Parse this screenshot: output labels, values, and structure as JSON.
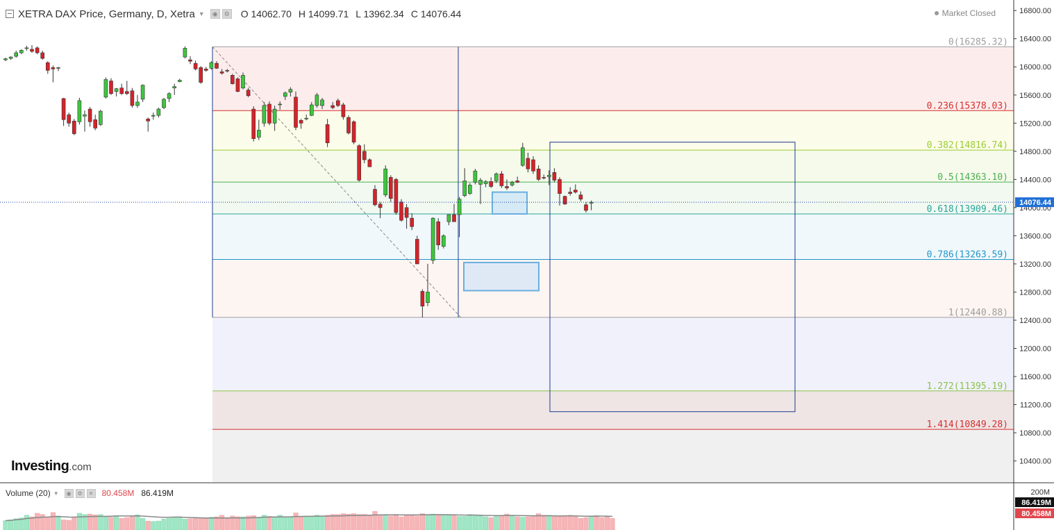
{
  "header": {
    "title": "XETRA DAX Price, Germany, D, Xetra",
    "open": "O 14062.70",
    "high": "H 14099.71",
    "low": "L 13962.34",
    "close": "C 14076.44",
    "market_status": "Market Closed"
  },
  "logo": {
    "main": "Investing",
    "suffix": ".com"
  },
  "volume_pane": {
    "label": "Volume (20)",
    "value_1": "80.458M",
    "value_2": "86.419M",
    "axis_labels": [
      "200M",
      "86.419M",
      "80.458M"
    ]
  },
  "colors": {
    "up": "#3ec63e",
    "down": "#d5232a",
    "vol_up": "#9fe6c5",
    "vol_down": "#f6b5b7"
  },
  "chart_data": {
    "type": "candlestick",
    "y_range": [
      10100,
      16950
    ],
    "y_ticks": [
      10400,
      10800,
      11200,
      11600,
      12000,
      12400,
      12800,
      13200,
      13600,
      14000,
      14400,
      14800,
      15200,
      15600,
      16000,
      16400,
      16800
    ],
    "y_tick_labels": [
      "10400.00",
      "10800.00",
      "11200.00",
      "11600.00",
      "12000.00",
      "12400.00",
      "12800.00",
      "13200.00",
      "13600.00",
      "14000.00",
      "14400.00",
      "14800.00",
      "15200.00",
      "15600.00",
      "16000.00",
      "16400.00",
      "16800.00"
    ],
    "last_price": 14076.44,
    "last_price_label": "14076.44",
    "fibonacci": {
      "levels": [
        {
          "label": "0(16285.32)",
          "price": 16285.32,
          "color": "#9e9e9e"
        },
        {
          "label": "0.236(15378.03)",
          "price": 15378.03,
          "color": "#d32f2f"
        },
        {
          "label": "0.382(14816.74)",
          "price": 14816.74,
          "color": "#9acd32"
        },
        {
          "label": "0.5(14363.10)",
          "price": 14363.1,
          "color": "#4caf50"
        },
        {
          "label": "0.618(13909.46)",
          "price": 13909.46,
          "color": "#26a69a"
        },
        {
          "label": "0.786(13263.59)",
          "price": 13263.59,
          "color": "#2196c9"
        },
        {
          "label": "1(12440.88)",
          "price": 12440.88,
          "color": "#9e9e9e"
        },
        {
          "label": "1.272(11395.19)",
          "price": 11395.19,
          "color": "#8bc34a"
        },
        {
          "label": "1.414(10849.28)",
          "price": 10849.28,
          "color": "#d32f2f"
        }
      ]
    },
    "candles": [
      {
        "o": 16100,
        "h": 16130,
        "l": 16080,
        "c": 16115
      },
      {
        "o": 16120,
        "h": 16150,
        "l": 16100,
        "c": 16140
      },
      {
        "o": 16150,
        "h": 16230,
        "l": 16130,
        "c": 16200
      },
      {
        "o": 16200,
        "h": 16250,
        "l": 16180,
        "c": 16235
      },
      {
        "o": 16260,
        "h": 16300,
        "l": 16230,
        "c": 16270
      },
      {
        "o": 16250,
        "h": 16310,
        "l": 16200,
        "c": 16220
      },
      {
        "o": 16270,
        "h": 16290,
        "l": 16180,
        "c": 16200
      },
      {
        "o": 16200,
        "h": 16230,
        "l": 16100,
        "c": 16120
      },
      {
        "o": 16060,
        "h": 16080,
        "l": 15900,
        "c": 15950
      },
      {
        "o": 15990,
        "h": 16020,
        "l": 15780,
        "c": 15970
      },
      {
        "o": 15980,
        "h": 16000,
        "l": 15940,
        "c": 15990
      },
      {
        "o": 15550,
        "h": 15560,
        "l": 15160,
        "c": 15250
      },
      {
        "o": 15320,
        "h": 15350,
        "l": 15150,
        "c": 15200
      },
      {
        "o": 15230,
        "h": 15260,
        "l": 15030,
        "c": 15050
      },
      {
        "o": 15220,
        "h": 15560,
        "l": 15180,
        "c": 15520
      },
      {
        "o": 15300,
        "h": 15380,
        "l": 15080,
        "c": 15320
      },
      {
        "o": 15400,
        "h": 15430,
        "l": 15150,
        "c": 15220
      },
      {
        "o": 15250,
        "h": 15320,
        "l": 15100,
        "c": 15130
      },
      {
        "o": 15180,
        "h": 15390,
        "l": 15160,
        "c": 15370
      },
      {
        "o": 15570,
        "h": 15850,
        "l": 15550,
        "c": 15820
      },
      {
        "o": 15800,
        "h": 15840,
        "l": 15600,
        "c": 15620
      },
      {
        "o": 15650,
        "h": 15700,
        "l": 15580,
        "c": 15690
      },
      {
        "o": 15700,
        "h": 15760,
        "l": 15600,
        "c": 15620
      },
      {
        "o": 15650,
        "h": 15800,
        "l": 15600,
        "c": 15620
      },
      {
        "o": 15660,
        "h": 15700,
        "l": 15420,
        "c": 15450
      },
      {
        "o": 15450,
        "h": 15600,
        "l": 15420,
        "c": 15500
      },
      {
        "o": 15540,
        "h": 15750,
        "l": 15500,
        "c": 15740
      },
      {
        "o": 15260,
        "h": 15280,
        "l": 15080,
        "c": 15230
      },
      {
        "o": 15300,
        "h": 15350,
        "l": 15250,
        "c": 15310
      },
      {
        "o": 15310,
        "h": 15420,
        "l": 15280,
        "c": 15400
      },
      {
        "o": 15420,
        "h": 15560,
        "l": 15400,
        "c": 15540
      },
      {
        "o": 15550,
        "h": 15640,
        "l": 15500,
        "c": 15620
      },
      {
        "o": 15700,
        "h": 15760,
        "l": 15600,
        "c": 15720
      },
      {
        "o": 15790,
        "h": 15830,
        "l": 15780,
        "c": 15810
      },
      {
        "o": 16140,
        "h": 16290,
        "l": 16120,
        "c": 16265
      },
      {
        "o": 16100,
        "h": 16150,
        "l": 16040,
        "c": 16080
      },
      {
        "o": 16050,
        "h": 16090,
        "l": 15950,
        "c": 15970
      },
      {
        "o": 15990,
        "h": 16010,
        "l": 15760,
        "c": 15780
      },
      {
        "o": 15970,
        "h": 16000,
        "l": 15930,
        "c": 15950
      },
      {
        "o": 15980,
        "h": 16080,
        "l": 15960,
        "c": 16060
      },
      {
        "o": 16050,
        "h": 16080,
        "l": 15970,
        "c": 15980
      },
      {
        "o": 15930,
        "h": 15970,
        "l": 15890,
        "c": 15910
      },
      {
        "o": 15950,
        "h": 15970,
        "l": 15920,
        "c": 15940
      },
      {
        "o": 15880,
        "h": 15900,
        "l": 15750,
        "c": 15760
      },
      {
        "o": 15830,
        "h": 15850,
        "l": 15640,
        "c": 15650
      },
      {
        "o": 15700,
        "h": 15920,
        "l": 15680,
        "c": 15880
      },
      {
        "o": 15670,
        "h": 15700,
        "l": 15570,
        "c": 15590
      },
      {
        "o": 15400,
        "h": 15440,
        "l": 14940,
        "c": 14980
      },
      {
        "o": 15000,
        "h": 15250,
        "l": 14960,
        "c": 15100
      },
      {
        "o": 15200,
        "h": 15500,
        "l": 15150,
        "c": 15450
      },
      {
        "o": 15470,
        "h": 15510,
        "l": 15170,
        "c": 15200
      },
      {
        "o": 15200,
        "h": 15450,
        "l": 15090,
        "c": 15400
      },
      {
        "o": 15460,
        "h": 15510,
        "l": 15390,
        "c": 15470
      },
      {
        "o": 15580,
        "h": 15650,
        "l": 15530,
        "c": 15630
      },
      {
        "o": 15640,
        "h": 15710,
        "l": 15580,
        "c": 15680
      },
      {
        "o": 15570,
        "h": 15650,
        "l": 15100,
        "c": 15140
      },
      {
        "o": 15240,
        "h": 15260,
        "l": 15120,
        "c": 15200
      },
      {
        "o": 15260,
        "h": 15320,
        "l": 15240,
        "c": 15270
      },
      {
        "o": 15310,
        "h": 15500,
        "l": 15300,
        "c": 15460
      },
      {
        "o": 15450,
        "h": 15630,
        "l": 15420,
        "c": 15600
      },
      {
        "o": 15450,
        "h": 15560,
        "l": 15400,
        "c": 15530
      },
      {
        "o": 15180,
        "h": 15260,
        "l": 14860,
        "c": 14920
      },
      {
        "o": 15450,
        "h": 15500,
        "l": 15400,
        "c": 15420
      },
      {
        "o": 15520,
        "h": 15550,
        "l": 15430,
        "c": 15450
      },
      {
        "o": 15460,
        "h": 15490,
        "l": 15250,
        "c": 15290
      },
      {
        "o": 15280,
        "h": 15310,
        "l": 15040,
        "c": 15060
      },
      {
        "o": 15220,
        "h": 15240,
        "l": 14900,
        "c": 14930
      },
      {
        "o": 14880,
        "h": 14900,
        "l": 14370,
        "c": 14390
      },
      {
        "o": 14800,
        "h": 14900,
        "l": 14630,
        "c": 14680
      },
      {
        "o": 14680,
        "h": 14700,
        "l": 14580,
        "c": 14580
      },
      {
        "o": 14260,
        "h": 14320,
        "l": 14020,
        "c": 14040
      },
      {
        "o": 14050,
        "h": 14080,
        "l": 13850,
        "c": 14000
      },
      {
        "o": 14180,
        "h": 14600,
        "l": 14150,
        "c": 14550
      },
      {
        "o": 14430,
        "h": 14460,
        "l": 14080,
        "c": 14130
      },
      {
        "o": 14400,
        "h": 14420,
        "l": 13900,
        "c": 13930
      },
      {
        "o": 14080,
        "h": 14120,
        "l": 13800,
        "c": 13820
      },
      {
        "o": 14000,
        "h": 14050,
        "l": 13700,
        "c": 13860
      },
      {
        "o": 13850,
        "h": 13920,
        "l": 13680,
        "c": 13730
      },
      {
        "o": 13550,
        "h": 13600,
        "l": 13200,
        "c": 13200
      },
      {
        "o": 12810,
        "h": 12840,
        "l": 12440,
        "c": 12600
      },
      {
        "o": 12650,
        "h": 13200,
        "l": 12600,
        "c": 12800
      },
      {
        "o": 13250,
        "h": 13860,
        "l": 13200,
        "c": 13850
      },
      {
        "o": 13800,
        "h": 13850,
        "l": 13400,
        "c": 13470
      },
      {
        "o": 13450,
        "h": 13620,
        "l": 13420,
        "c": 13600
      },
      {
        "o": 13800,
        "h": 13900,
        "l": 13750,
        "c": 13900
      },
      {
        "o": 13900,
        "h": 14050,
        "l": 13830,
        "c": 13800
      },
      {
        "o": 13900,
        "h": 14150,
        "l": 13580,
        "c": 14120
      },
      {
        "o": 14170,
        "h": 14560,
        "l": 14150,
        "c": 14380
      },
      {
        "o": 14200,
        "h": 14350,
        "l": 14180,
        "c": 14320
      },
      {
        "o": 14360,
        "h": 14550,
        "l": 14330,
        "c": 14520
      },
      {
        "o": 14330,
        "h": 14420,
        "l": 14050,
        "c": 14390
      },
      {
        "o": 14340,
        "h": 14390,
        "l": 14290,
        "c": 14370
      },
      {
        "o": 14370,
        "h": 14430,
        "l": 14280,
        "c": 14300
      },
      {
        "o": 14380,
        "h": 14500,
        "l": 14350,
        "c": 14480
      },
      {
        "o": 14480,
        "h": 14520,
        "l": 14280,
        "c": 14310
      },
      {
        "o": 14300,
        "h": 14400,
        "l": 14250,
        "c": 14280
      },
      {
        "o": 14320,
        "h": 14380,
        "l": 14300,
        "c": 14360
      },
      {
        "o": 14380,
        "h": 14440,
        "l": 14350,
        "c": 14360
      },
      {
        "o": 14600,
        "h": 14920,
        "l": 14580,
        "c": 14850
      },
      {
        "o": 14700,
        "h": 14780,
        "l": 14500,
        "c": 14550
      },
      {
        "o": 14680,
        "h": 14730,
        "l": 14480,
        "c": 14520
      },
      {
        "o": 14550,
        "h": 14600,
        "l": 14380,
        "c": 14400
      },
      {
        "o": 14430,
        "h": 14470,
        "l": 14400,
        "c": 14420
      },
      {
        "o": 14440,
        "h": 14530,
        "l": 14320,
        "c": 14460
      },
      {
        "o": 14500,
        "h": 14560,
        "l": 14360,
        "c": 14390
      },
      {
        "o": 14400,
        "h": 14430,
        "l": 14030,
        "c": 14200
      },
      {
        "o": 14160,
        "h": 14170,
        "l": 14040,
        "c": 14050
      },
      {
        "o": 14220,
        "h": 14290,
        "l": 14170,
        "c": 14200
      },
      {
        "o": 14250,
        "h": 14330,
        "l": 14200,
        "c": 14220
      },
      {
        "o": 14180,
        "h": 14230,
        "l": 14090,
        "c": 14120
      },
      {
        "o": 14040,
        "h": 14080,
        "l": 13930,
        "c": 13960
      },
      {
        "o": 14062.7,
        "h": 14099.71,
        "l": 13962.34,
        "c": 14076.44
      }
    ],
    "volume": [
      24,
      26,
      29,
      31,
      38,
      34,
      43,
      40,
      34,
      45,
      36,
      26,
      25,
      33,
      43,
      40,
      41,
      39,
      40,
      34,
      33,
      37,
      30,
      32,
      36,
      39,
      30,
      23,
      22,
      23,
      28,
      30,
      33,
      34,
      28,
      29,
      32,
      31,
      31,
      33,
      34,
      38,
      32,
      36,
      34,
      34,
      36,
      37,
      31,
      38,
      35,
      34,
      38,
      33,
      33,
      44,
      34,
      36,
      36,
      38,
      36,
      38,
      40,
      40,
      42,
      41,
      42,
      40,
      40,
      38,
      48,
      39,
      40,
      36,
      37,
      34,
      37,
      37,
      36,
      42,
      39,
      41,
      40,
      39,
      38,
      38,
      35,
      35,
      40,
      38,
      36,
      34,
      32,
      35,
      37,
      41,
      36,
      34,
      33,
      34,
      36,
      42,
      38,
      38,
      36,
      35,
      36,
      38,
      34,
      30,
      32,
      35,
      37,
      32,
      34,
      30
    ],
    "volume_ma_label": "86.419M"
  }
}
